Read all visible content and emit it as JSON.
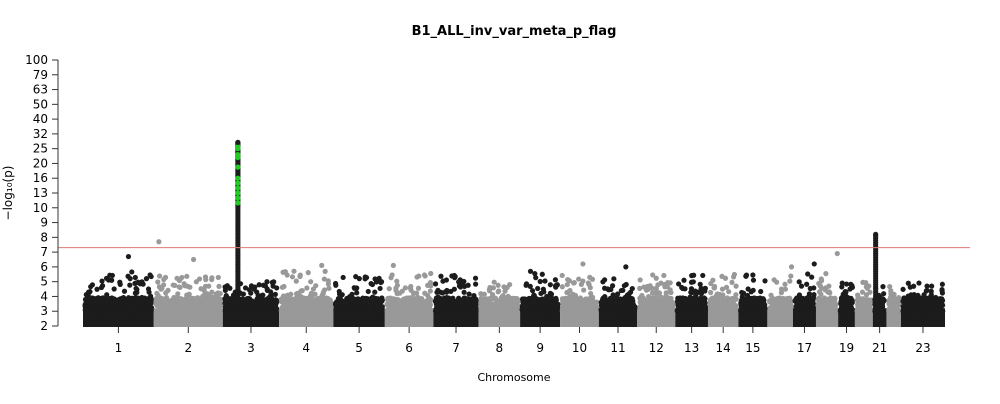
{
  "chart_data": {
    "type": "scatter",
    "subtype": "manhattan",
    "title": "B1_ALL_inv_var_meta_p_flag",
    "xlabel": "Chromosome",
    "ylabel": "−log₁₀(p)",
    "y_ticks": [
      2,
      3,
      4,
      5,
      6,
      7,
      8,
      9,
      10,
      13,
      16,
      20,
      25,
      32,
      40,
      50,
      63,
      79,
      100
    ],
    "ylim": [
      2,
      100
    ],
    "y_scale": "compressed above 10",
    "significance_threshold": 7.3,
    "threshold_color": "#e07a72",
    "colors": {
      "odd": "#1c1c1c",
      "even": "#999999",
      "highlight": "#22cc22"
    },
    "chromosomes": [
      {
        "chr": "1",
        "length_mb": 249,
        "label": "1",
        "max_bg": 5.7
      },
      {
        "chr": "2",
        "length_mb": 243,
        "label": "2",
        "max_bg": 5.5
      },
      {
        "chr": "3",
        "length_mb": 198,
        "label": "3",
        "max_bg": 5.0
      },
      {
        "chr": "4",
        "length_mb": 191,
        "label": "4",
        "max_bg": 5.8
      },
      {
        "chr": "5",
        "length_mb": 181,
        "label": "5",
        "max_bg": 5.4
      },
      {
        "chr": "6",
        "length_mb": 171,
        "label": "6",
        "max_bg": 5.8
      },
      {
        "chr": "7",
        "length_mb": 159,
        "label": "7",
        "max_bg": 5.5
      },
      {
        "chr": "8",
        "length_mb": 146,
        "label": "8",
        "max_bg": 5.1
      },
      {
        "chr": "9",
        "length_mb": 141,
        "label": "9",
        "max_bg": 5.8
      },
      {
        "chr": "10",
        "length_mb": 136,
        "label": "10",
        "max_bg": 5.5
      },
      {
        "chr": "11",
        "length_mb": 135,
        "label": "11",
        "max_bg": 5.4
      },
      {
        "chr": "12",
        "length_mb": 134,
        "label": "12",
        "max_bg": 5.5
      },
      {
        "chr": "13",
        "length_mb": 115,
        "label": "13",
        "max_bg": 5.5
      },
      {
        "chr": "14",
        "length_mb": 107,
        "label": "14",
        "max_bg": 5.7
      },
      {
        "chr": "15",
        "length_mb": 102,
        "label": "15",
        "max_bg": 5.6
      },
      {
        "chr": "16",
        "length_mb": 90,
        "label": "",
        "max_bg": 5.7
      },
      {
        "chr": "17",
        "length_mb": 81,
        "label": "17",
        "max_bg": 5.7
      },
      {
        "chr": "18",
        "length_mb": 78,
        "label": "",
        "max_bg": 5.7
      },
      {
        "chr": "19",
        "length_mb": 59,
        "label": "19",
        "max_bg": 5.0
      },
      {
        "chr": "20",
        "length_mb": 63,
        "label": "",
        "max_bg": 5.0
      },
      {
        "chr": "21",
        "length_mb": 48,
        "label": "21",
        "max_bg": 4.9
      },
      {
        "chr": "22",
        "length_mb": 51,
        "label": "",
        "max_bg": 4.9
      },
      {
        "chr": "23",
        "length_mb": 155,
        "label": "23",
        "max_bg": 5.0
      }
    ],
    "peaks": [
      {
        "chr": "1",
        "pos_mb": 160,
        "value": 6.7
      },
      {
        "chr": "2",
        "pos_mb": 18,
        "value": 7.7
      },
      {
        "chr": "2",
        "pos_mb": 140,
        "value": 6.5
      },
      {
        "chr": "3",
        "pos_mb": 53,
        "value": 28,
        "column": true,
        "highlight_values": [
          11,
          12,
          13,
          14,
          15,
          16,
          19,
          22,
          23,
          25,
          26
        ]
      },
      {
        "chr": "4",
        "pos_mb": 150,
        "value": 6.1
      },
      {
        "chr": "6",
        "pos_mb": 30,
        "value": 6.1
      },
      {
        "chr": "10",
        "pos_mb": 80,
        "value": 6.2
      },
      {
        "chr": "11",
        "pos_mb": 95,
        "value": 6.0
      },
      {
        "chr": "16",
        "pos_mb": 85,
        "value": 6.0
      },
      {
        "chr": "17",
        "pos_mb": 75,
        "value": 6.2
      },
      {
        "chr": "18",
        "pos_mb": 75,
        "value": 6.9
      },
      {
        "chr": "21",
        "pos_mb": 10,
        "value": 8.2,
        "column": true
      }
    ]
  }
}
